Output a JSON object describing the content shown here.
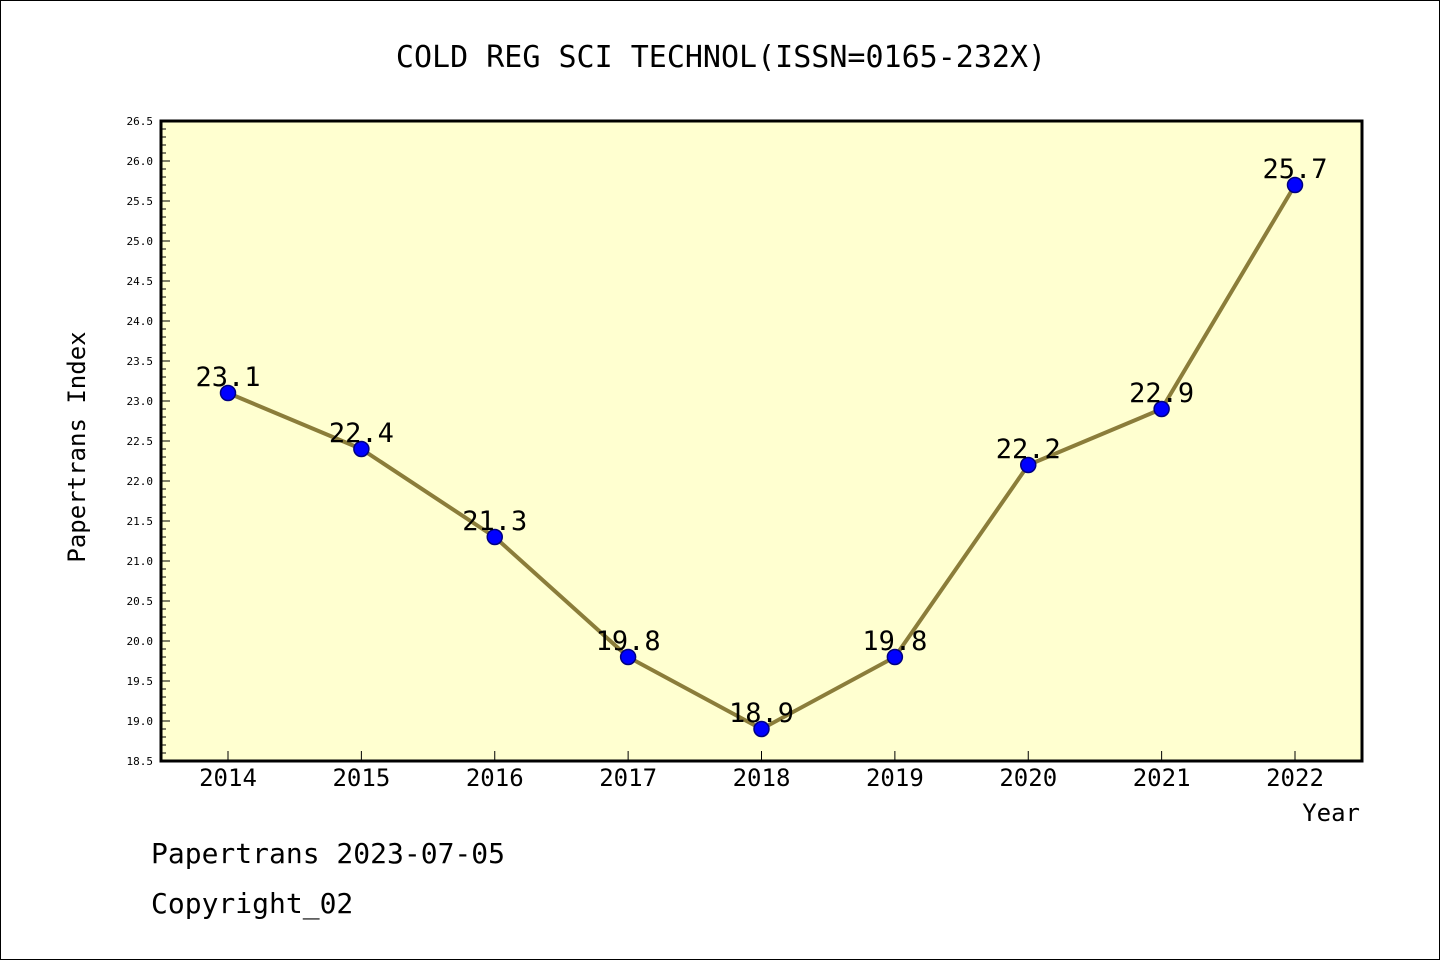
{
  "chart_data": {
    "type": "line",
    "title": "COLD REG SCI TECHNOL(ISSN=0165-232X)",
    "xlabel": "Year",
    "ylabel": "Papertrans Index",
    "categories": [
      "2014",
      "2015",
      "2016",
      "2017",
      "2018",
      "2019",
      "2020",
      "2021",
      "2022"
    ],
    "values": [
      23.1,
      22.4,
      21.3,
      19.8,
      18.9,
      19.8,
      22.2,
      22.9,
      25.7
    ],
    "data_labels": [
      "23.1",
      "22.4",
      "21.3",
      "19.8",
      "18.9",
      "19.8",
      "22.2",
      "22.9",
      "25.7"
    ],
    "ylim": [
      18.5,
      26.5
    ],
    "yticks": [
      "18.5",
      "19.0",
      "19.5",
      "20.0",
      "20.5",
      "21.0",
      "21.5",
      "22.0",
      "22.5",
      "23.0",
      "23.5",
      "24.0",
      "24.5",
      "25.0",
      "25.5",
      "26.0",
      "26.5"
    ],
    "grid": false,
    "colors": {
      "plot_background": "#ffffd0",
      "line": "#8b7d3a",
      "marker": "#0000ff",
      "marker_edge": "#000080"
    }
  },
  "footer": {
    "line1": "Papertrans 2023-07-05",
    "line2": "Copyright_02"
  }
}
